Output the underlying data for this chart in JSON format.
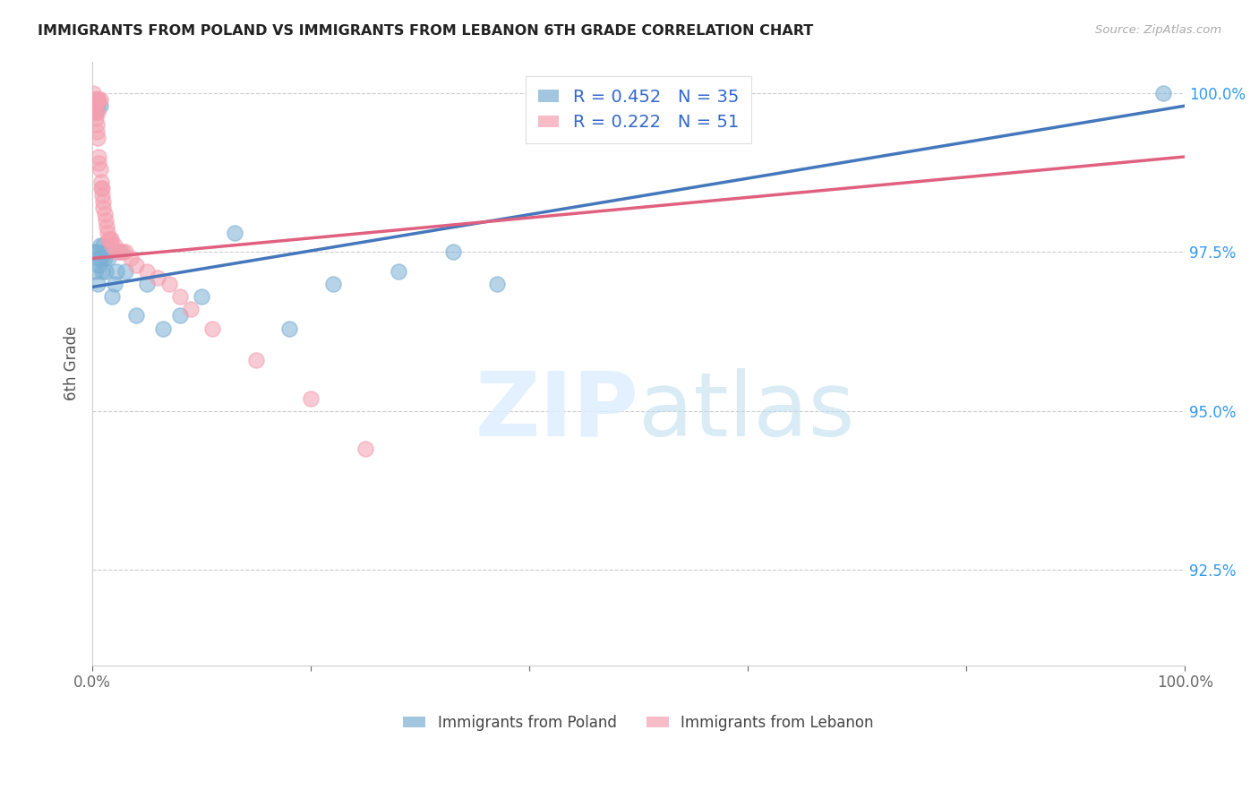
{
  "title": "IMMIGRANTS FROM POLAND VS IMMIGRANTS FROM LEBANON 6TH GRADE CORRELATION CHART",
  "source": "Source: ZipAtlas.com",
  "ylabel": "6th Grade",
  "poland_color": "#7BAFD4",
  "lebanon_color": "#F4A0B0",
  "poland_line_color": "#4477BB",
  "lebanon_line_color": "#E06080",
  "legend_R_poland": "R = 0.452",
  "legend_N_poland": "N = 35",
  "legend_R_lebanon": "R = 0.222",
  "legend_N_lebanon": "N = 51",
  "poland_label": "Immigrants from Poland",
  "lebanon_label": "Immigrants from Lebanon",
  "poland_x": [
    0.001,
    0.002,
    0.003,
    0.003,
    0.004,
    0.005,
    0.005,
    0.006,
    0.006,
    0.007,
    0.007,
    0.008,
    0.009,
    0.01,
    0.011,
    0.012,
    0.013,
    0.015,
    0.018,
    0.02,
    0.022,
    0.025,
    0.03,
    0.04,
    0.05,
    0.065,
    0.08,
    0.1,
    0.13,
    0.18,
    0.22,
    0.28,
    0.33,
    0.37,
    0.98
  ],
  "poland_y": [
    0.975,
    0.972,
    0.998,
    0.997,
    0.975,
    0.97,
    0.998,
    0.974,
    0.973,
    0.998,
    0.976,
    0.974,
    0.972,
    0.976,
    0.974,
    0.972,
    0.975,
    0.974,
    0.968,
    0.97,
    0.972,
    0.975,
    0.972,
    0.965,
    0.97,
    0.963,
    0.965,
    0.968,
    0.978,
    0.963,
    0.97,
    0.972,
    0.975,
    0.97,
    1.0
  ],
  "lebanon_x": [
    0.001,
    0.001,
    0.001,
    0.002,
    0.002,
    0.002,
    0.003,
    0.003,
    0.003,
    0.003,
    0.004,
    0.004,
    0.004,
    0.005,
    0.005,
    0.005,
    0.006,
    0.006,
    0.006,
    0.007,
    0.007,
    0.008,
    0.008,
    0.009,
    0.009,
    0.01,
    0.01,
    0.011,
    0.012,
    0.013,
    0.014,
    0.015,
    0.016,
    0.017,
    0.018,
    0.02,
    0.022,
    0.025,
    0.028,
    0.03,
    0.035,
    0.04,
    0.05,
    0.06,
    0.07,
    0.08,
    0.09,
    0.11,
    0.15,
    0.2,
    0.25
  ],
  "lebanon_y": [
    0.998,
    0.999,
    1.0,
    0.998,
    0.999,
    0.997,
    0.998,
    0.997,
    0.996,
    0.999,
    0.995,
    0.994,
    0.999,
    0.997,
    0.993,
    0.999,
    0.99,
    0.999,
    0.989,
    0.988,
    0.999,
    0.986,
    0.985,
    0.985,
    0.984,
    0.983,
    0.982,
    0.981,
    0.98,
    0.979,
    0.978,
    0.977,
    0.977,
    0.977,
    0.976,
    0.976,
    0.975,
    0.975,
    0.975,
    0.975,
    0.974,
    0.973,
    0.972,
    0.971,
    0.97,
    0.968,
    0.966,
    0.963,
    0.958,
    0.952,
    0.944
  ],
  "xlim": [
    0.0,
    1.0
  ],
  "ylim": [
    0.91,
    1.005
  ],
  "yticks": [
    0.925,
    0.95,
    0.975,
    1.0
  ],
  "ytick_labels": [
    "92.5%",
    "95.0%",
    "97.5%",
    "100.0%"
  ],
  "xtick_labels_left": "0.0%",
  "xtick_labels_right": "100.0%",
  "poland_trendline_x0": 0.0,
  "poland_trendline_x1": 1.0,
  "poland_trendline_y0": 0.9695,
  "poland_trendline_y1": 0.998,
  "lebanon_trendline_x0": 0.0,
  "lebanon_trendline_x1": 1.0,
  "lebanon_trendline_y0": 0.974,
  "lebanon_trendline_y1": 0.99
}
